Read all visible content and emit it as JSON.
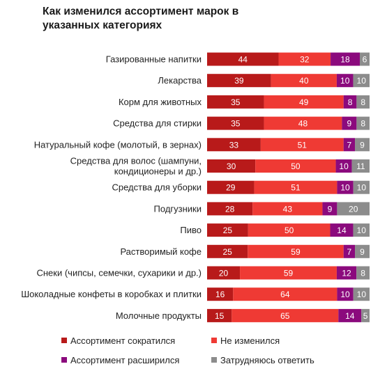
{
  "chart_data": {
    "type": "bar",
    "orientation": "horizontal",
    "stacked": true,
    "title": "Как изменился ассортимент марок в указанных категориях",
    "categories": [
      "Газированные напитки",
      "Лекарства",
      "Корм для животных",
      "Средства для стирки",
      "Натуральный кофе (молотый, в зернах)",
      "Средства для волос (шампуни, кондиционеры и др.)",
      "Средства для уборки",
      "Подгузники",
      "Пиво",
      "Растворимый кофе",
      "Снеки (чипсы, семечки, сухарики и др.)",
      "Шоколадные конфеты в коробках и плитки",
      "Молочные продукты"
    ],
    "category_lines": [
      [
        "Газированные напитки"
      ],
      [
        "Лекарства"
      ],
      [
        "Корм для животных"
      ],
      [
        "Средства для стирки"
      ],
      [
        "Натуральный кофе (молотый, в зернах)"
      ],
      [
        "Средства для волос (шампуни,",
        "кондиционеры и др.)"
      ],
      [
        "Средства для уборки"
      ],
      [
        "Подгузники"
      ],
      [
        "Пиво"
      ],
      [
        "Растворимый кофе"
      ],
      [
        "Снеки (чипсы, семечки, сухарики и др.)"
      ],
      [
        "Шоколадные конфеты в коробках и плитки"
      ],
      [
        "Молочные продукты"
      ]
    ],
    "series": [
      {
        "name": "Ассортимент сократился",
        "color": "#b81a1a",
        "values": [
          44,
          39,
          35,
          35,
          33,
          30,
          29,
          28,
          25,
          25,
          20,
          16,
          15
        ]
      },
      {
        "name": "Не изменился",
        "color": "#ef3a34",
        "values": [
          32,
          40,
          49,
          48,
          51,
          50,
          51,
          43,
          50,
          59,
          59,
          64,
          65
        ]
      },
      {
        "name": "Ассортимент расширился",
        "color": "#8b0a7d",
        "values": [
          18,
          10,
          8,
          9,
          7,
          10,
          10,
          9,
          14,
          7,
          12,
          10,
          14
        ]
      },
      {
        "name": "Затрудняюсь ответить",
        "color": "#8c8c8c",
        "values": [
          6,
          10,
          8,
          8,
          9,
          11,
          10,
          20,
          10,
          9,
          8,
          10,
          5
        ]
      }
    ],
    "legend_position": "bottom",
    "grid": false
  }
}
